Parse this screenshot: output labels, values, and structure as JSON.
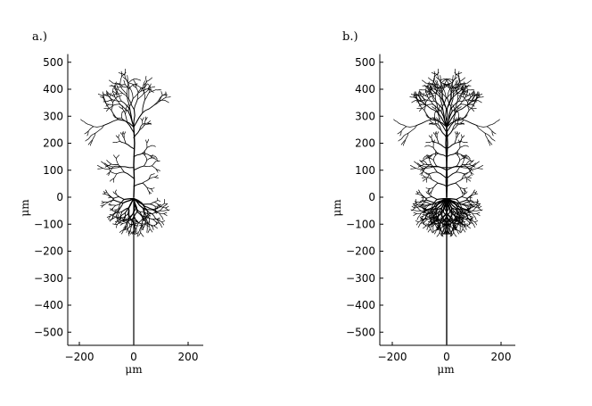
{
  "panels": [
    {
      "label": "a.)",
      "xlabel": "μm",
      "ylabel": "μm",
      "xticks": [
        -200,
        0,
        200
      ],
      "yticks": [
        500,
        400,
        300,
        200,
        100,
        0,
        -100,
        -200,
        -300,
        -400,
        -500
      ],
      "symmetric": false
    },
    {
      "label": "b.)",
      "xlabel": "μm",
      "ylabel": "μm",
      "xticks": [
        -200,
        0,
        200
      ],
      "yticks": [
        500,
        400,
        300,
        200,
        100,
        0,
        -100,
        -200,
        -300,
        -400,
        -500
      ],
      "symmetric": true
    }
  ],
  "xlim": [
    -200,
    250
  ],
  "ylim": [
    -550,
    530
  ],
  "colors": {
    "line": "#000000",
    "background": "#ffffff"
  }
}
